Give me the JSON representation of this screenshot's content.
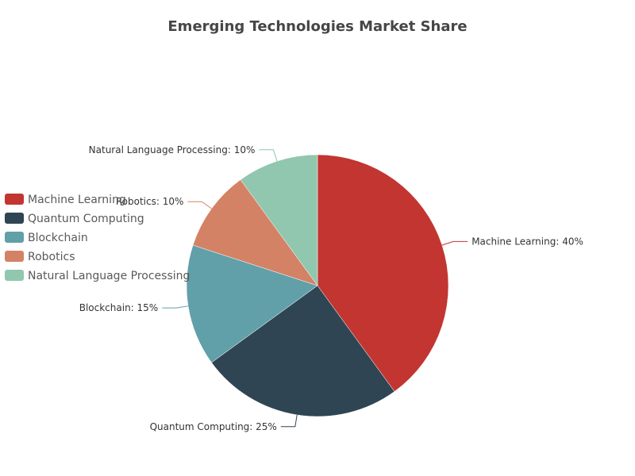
{
  "chart_data": {
    "type": "pie",
    "title": "Emerging Technologies Market Share",
    "categories": [
      "Machine Learning",
      "Quantum Computing",
      "Blockchain",
      "Robotics",
      "Natural Language Processing"
    ],
    "values": [
      40,
      25,
      15,
      10,
      10
    ],
    "unit": "%",
    "colors": [
      "#c23531",
      "#2f4554",
      "#61a0a8",
      "#d48265",
      "#91c7ae"
    ],
    "legend": {
      "position": "left",
      "entries": [
        "Machine Learning",
        "Quantum Computing",
        "Blockchain",
        "Robotics",
        "Natural Language Processing"
      ]
    },
    "data_labels": [
      "Machine Learning: 40%",
      "Quantum Computing: 25%",
      "Blockchain: 15%",
      "Robotics: 10%",
      "Natural Language Processing: 10%"
    ]
  }
}
